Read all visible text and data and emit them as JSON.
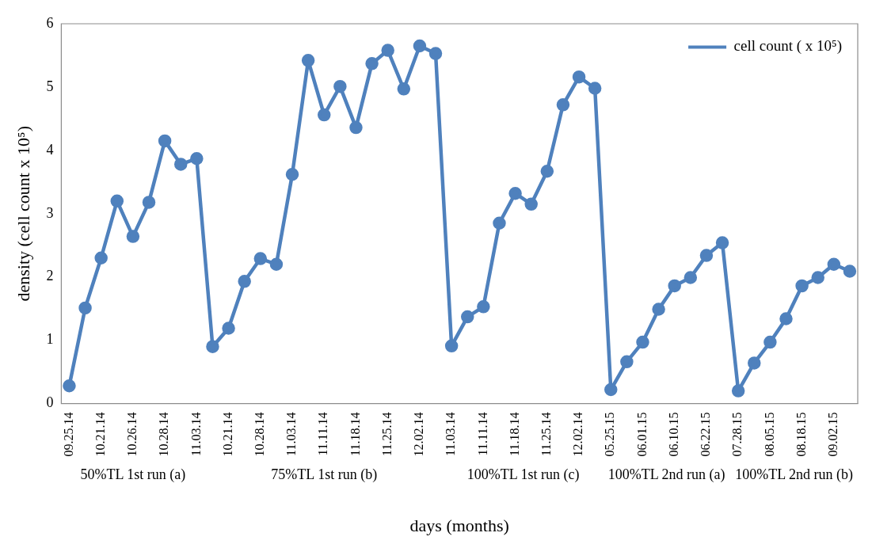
{
  "chart_data": {
    "type": "line",
    "ylabel": "density (cell count x 10⁵)",
    "xlabel": "days (months)",
    "categories": [
      "09.25.14",
      null,
      "10.21.14",
      null,
      "10.26.14",
      null,
      "10.28.14",
      null,
      "11.03.14",
      null,
      "10.21.14",
      null,
      "10.28.14",
      null,
      "11.03.14",
      null,
      "11.11.14",
      null,
      "11.18.14",
      null,
      "11.25.14",
      null,
      "12.02.14",
      null,
      "11.03.14",
      null,
      "11.11.14",
      null,
      "11.18.14",
      null,
      "11.25.14",
      null,
      "12.02.14",
      null,
      "05.25.15",
      null,
      "06.01.15",
      null,
      "06.10.15",
      null,
      "06.22.15",
      null,
      "07.28.15",
      null,
      "08.05.15",
      null,
      "08.18.15",
      null,
      "09.02.15",
      null
    ],
    "series": [
      {
        "name": "cell count ( x 10⁵)",
        "color": "#4f81bd",
        "values": [
          0.28,
          1.51,
          2.3,
          3.2,
          2.64,
          3.18,
          4.15,
          3.78,
          3.87,
          0.9,
          1.19,
          1.93,
          2.29,
          2.2,
          3.62,
          5.42,
          4.56,
          5.01,
          4.36,
          5.37,
          5.58,
          4.97,
          5.65,
          5.53,
          0.91,
          1.37,
          1.53,
          2.85,
          3.32,
          3.15,
          3.67,
          4.72,
          5.16,
          4.98,
          0.22,
          0.66,
          0.97,
          1.49,
          1.86,
          1.99,
          2.34,
          2.54,
          0.2,
          0.64,
          0.97,
          1.34,
          1.86,
          1.99,
          2.2,
          2.09
        ]
      }
    ],
    "ylim": [
      0,
      6
    ],
    "yticks": [
      0,
      1,
      2,
      3,
      4,
      5,
      6
    ],
    "grid": false,
    "legend": "top right",
    "marker": "circle",
    "line_style": "solid",
    "annotations": [
      "50%TL 1st run (a)",
      "75%TL 1st run (b)",
      "100%TL 1st run (c)",
      "100%TL 2nd run (a)",
      "100%TL 2nd run (b)"
    ]
  }
}
